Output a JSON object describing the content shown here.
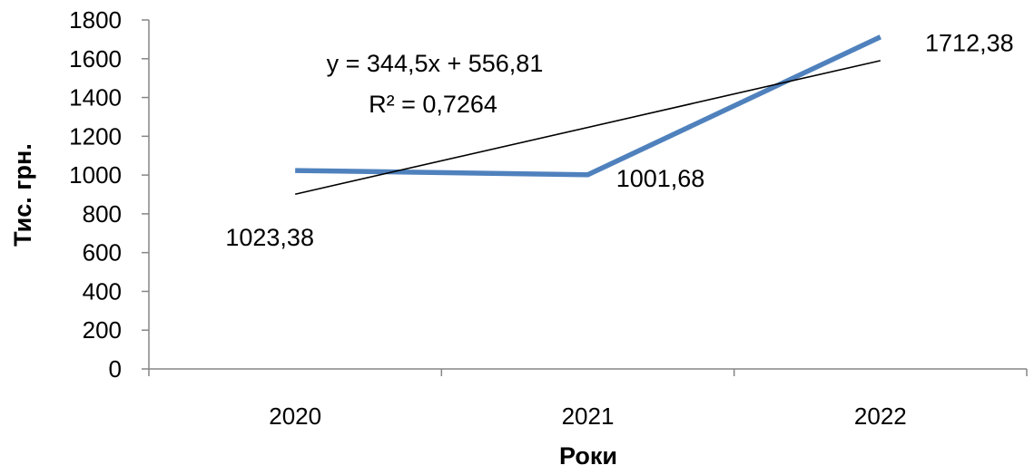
{
  "chart_data": {
    "type": "line",
    "categories": [
      "2020",
      "2021",
      "2022"
    ],
    "series": [
      {
        "values": [
          1023.38,
          1001.68,
          1712.38
        ],
        "color": "#4f81bd"
      }
    ],
    "data_labels": [
      "1023,38",
      "1001,68",
      "1712,38"
    ],
    "trendline": {
      "type": "linear",
      "equation": "y = 344,5x + 556,81",
      "r_squared": "R² = 0,7264",
      "slope": 344.5,
      "intercept": 556.81,
      "color": "#000000"
    },
    "xlabel": "Роки",
    "ylabel": "Тис. грн.",
    "ylim": [
      0,
      1800
    ],
    "yticks": [
      0,
      200,
      400,
      600,
      800,
      1000,
      1200,
      1400,
      1600,
      1800
    ],
    "ytick_labels": [
      "0",
      "200",
      "400",
      "600",
      "800",
      "1000",
      "1200",
      "1400",
      "1600",
      "1800"
    ],
    "grid": false,
    "legend": false
  }
}
